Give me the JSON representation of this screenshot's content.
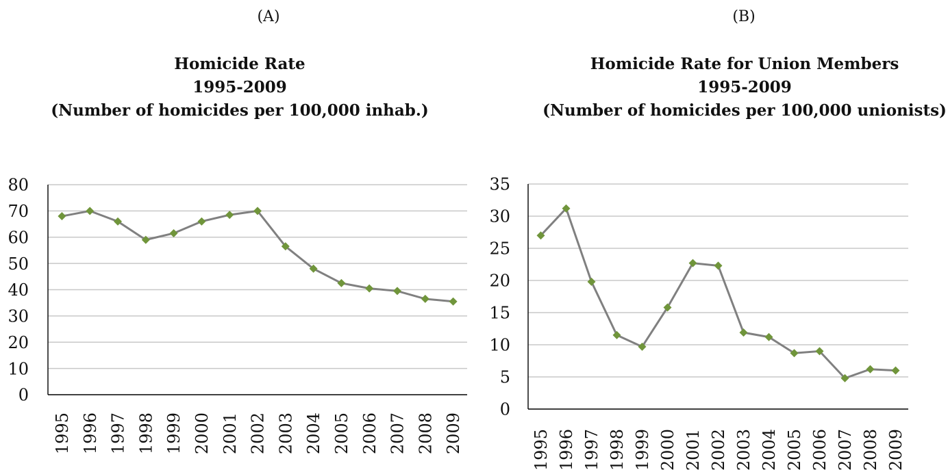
{
  "chart_data": [
    {
      "panel": "(A)",
      "type": "line",
      "title": "Homicide Rate",
      "subtitle": "1995-2009",
      "subtitle2": "(Number of homicides per 100,000 inhab.)",
      "categories": [
        "1995",
        "1996",
        "1997",
        "1998",
        "1999",
        "2000",
        "2001",
        "2002",
        "2003",
        "2004",
        "2005",
        "2006",
        "2007",
        "2008",
        "2009"
      ],
      "series": [
        {
          "values": [
            68,
            70,
            66,
            59,
            61.5,
            66,
            68.5,
            70,
            56.5,
            48,
            42.5,
            40.5,
            39.5,
            36.5,
            35.5
          ]
        }
      ],
      "ylim": [
        0,
        80
      ],
      "yticks": [
        "0",
        "10",
        "20",
        "30",
        "40",
        "50",
        "60",
        "70",
        "80"
      ],
      "grid": true,
      "legend": "none",
      "colors": {
        "line": "#808080",
        "marker": "#70953b",
        "grid": "#c8c8c8",
        "axis": "#000000"
      }
    },
    {
      "panel": "(B)",
      "type": "line",
      "title": "Homicide Rate for Union Members",
      "subtitle": "1995-2009",
      "subtitle2": "(Number of homicides per 100,000 unionists)",
      "categories": [
        "1995",
        "1996",
        "1997",
        "1998",
        "1999",
        "2000",
        "2001",
        "2002",
        "2003",
        "2004",
        "2005",
        "2006",
        "2007",
        "2008",
        "2009"
      ],
      "series": [
        {
          "values": [
            27,
            31.2,
            19.8,
            11.5,
            9.7,
            15.8,
            22.7,
            22.3,
            11.9,
            11.2,
            8.7,
            9,
            4.8,
            6.2,
            6
          ]
        }
      ],
      "ylim": [
        0,
        35
      ],
      "yticks": [
        "0",
        "5",
        "10",
        "15",
        "20",
        "25",
        "30",
        "35"
      ],
      "grid": true,
      "legend": "none",
      "colors": {
        "line": "#808080",
        "marker": "#70953b",
        "grid": "#c8c8c8",
        "axis": "#000000"
      }
    }
  ]
}
